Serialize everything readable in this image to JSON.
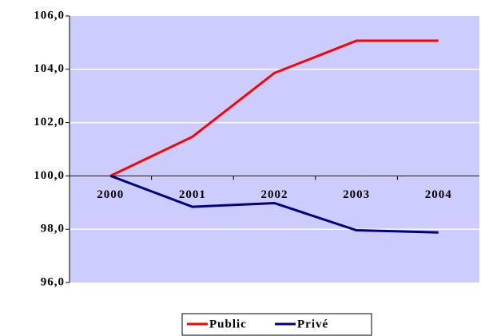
{
  "chart_data": {
    "type": "line",
    "categories": [
      "2000",
      "2001",
      "2002",
      "2003",
      "2004"
    ],
    "series": [
      {
        "name": "Public",
        "color": "#ff0000",
        "values": [
          100,
          101.47,
          103.86,
          105.07,
          105.07
        ]
      },
      {
        "name": "Privé",
        "color": "#000080",
        "values": [
          100,
          98.84,
          98.98,
          97.96,
          97.88
        ]
      }
    ],
    "ylim": [
      96,
      106
    ],
    "yticks": [
      {
        "value": 96,
        "label": "96,0"
      },
      {
        "value": 98,
        "label": "98,0"
      },
      {
        "value": 100,
        "label": "100,0"
      },
      {
        "value": 102,
        "label": "102,0"
      },
      {
        "value": 104,
        "label": "104,0"
      },
      {
        "value": 106,
        "label": "106,0"
      }
    ],
    "x_axis_crossing": 100,
    "grid": true,
    "legend": "bottom",
    "background": "#ccccff"
  }
}
